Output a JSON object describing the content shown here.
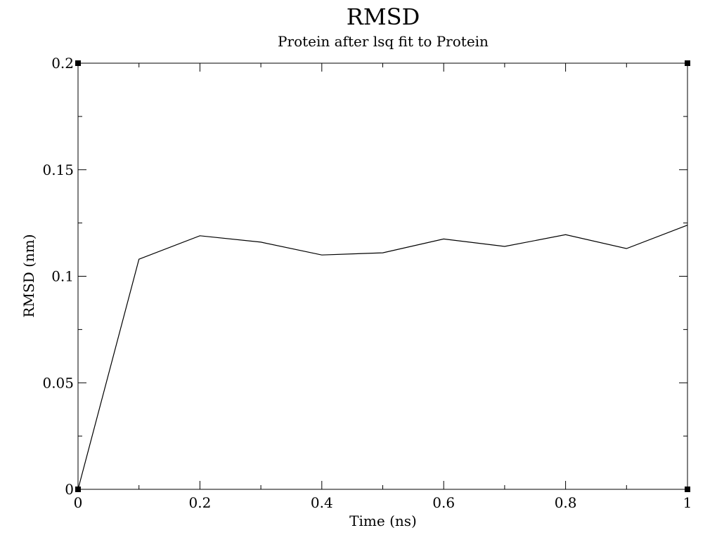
{
  "chart_data": {
    "type": "line",
    "title": "RMSD",
    "subtitle": "Protein after lsq fit to Protein",
    "xlabel": "Time (ns)",
    "ylabel": "RMSD (nm)",
    "xlim": [
      0,
      1
    ],
    "ylim": [
      0,
      0.2
    ],
    "x_ticks": [
      "0",
      "0.2",
      "0.4",
      "0.6",
      "0.8",
      "1"
    ],
    "y_ticks": [
      "0",
      "0.05",
      "0.1",
      "0.15",
      "0.2"
    ],
    "grid": false,
    "series": [
      {
        "name": "RMSD",
        "x": [
          0,
          0.1,
          0.2,
          0.3,
          0.4,
          0.5,
          0.6,
          0.7,
          0.8,
          0.9,
          1.0
        ],
        "y": [
          0,
          0.108,
          0.119,
          0.116,
          0.11,
          0.111,
          0.1175,
          0.114,
          0.1195,
          0.113,
          0.124
        ]
      }
    ]
  }
}
